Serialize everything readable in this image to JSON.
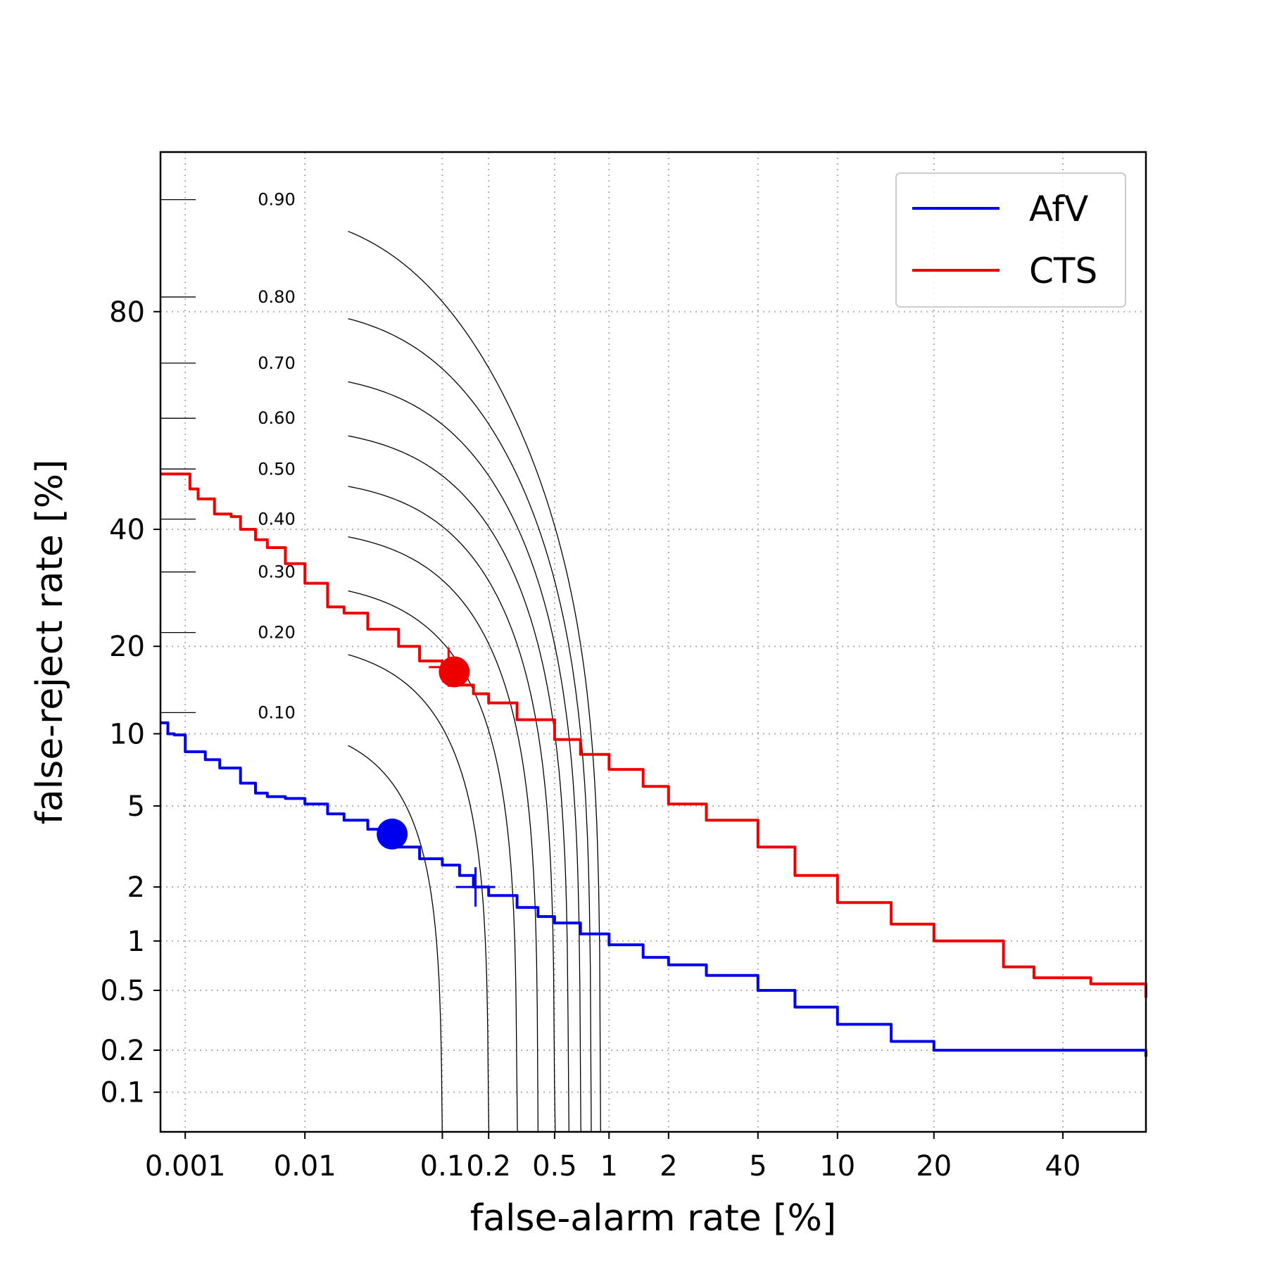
{
  "chart_data": {
    "type": "line",
    "title": "",
    "xlabel": "false-alarm rate [%]",
    "ylabel": "false-reject rate [%]",
    "x_scale": "probit",
    "y_scale": "probit",
    "xlim": [
      0.0006,
      55
    ],
    "ylim": [
      0.05,
      95
    ],
    "grid": true,
    "legend_position": "top-right",
    "x_ticks": [
      {
        "value": 0.001,
        "label": "0.001"
      },
      {
        "value": 0.01,
        "label": "0.01"
      },
      {
        "value": 0.1,
        "label": "0.1"
      },
      {
        "value": 0.2,
        "label": "0.2"
      },
      {
        "value": 0.5,
        "label": "0.5"
      },
      {
        "value": 1,
        "label": "1"
      },
      {
        "value": 2,
        "label": "2"
      },
      {
        "value": 5,
        "label": "5"
      },
      {
        "value": 10,
        "label": "10"
      },
      {
        "value": 20,
        "label": "20"
      },
      {
        "value": 40,
        "label": "40"
      }
    ],
    "y_ticks": [
      {
        "value": 0.1,
        "label": "0.1"
      },
      {
        "value": 0.2,
        "label": "0.2"
      },
      {
        "value": 0.5,
        "label": "0.5"
      },
      {
        "value": 1,
        "label": "1"
      },
      {
        "value": 2,
        "label": "2"
      },
      {
        "value": 5,
        "label": "5"
      },
      {
        "value": 10,
        "label": "10"
      },
      {
        "value": 20,
        "label": "20"
      },
      {
        "value": 40,
        "label": "40"
      },
      {
        "value": 80,
        "label": "80"
      }
    ],
    "series": [
      {
        "name": "AfV",
        "color": "#0000ee",
        "x": [
          0.0006,
          0.0007,
          0.0008,
          0.001,
          0.0015,
          0.002,
          0.003,
          0.004,
          0.005,
          0.007,
          0.01,
          0.015,
          0.02,
          0.03,
          0.04,
          0.05,
          0.07,
          0.1,
          0.13,
          0.16,
          0.2,
          0.3,
          0.4,
          0.5,
          0.7,
          1,
          1.5,
          2,
          3,
          5,
          7,
          10,
          15,
          20,
          30,
          40,
          55
        ],
        "y": [
          11,
          10,
          9.9,
          8.5,
          7.9,
          7.3,
          6.3,
          5.7,
          5.5,
          5.4,
          5.1,
          4.6,
          4.3,
          3.9,
          3.6,
          3.2,
          2.8,
          2.6,
          2.3,
          2.0,
          1.8,
          1.55,
          1.38,
          1.27,
          1.1,
          0.95,
          0.8,
          0.72,
          0.62,
          0.5,
          0.39,
          0.3,
          0.23,
          0.2,
          0.2,
          0.2,
          0.18
        ]
      },
      {
        "name": "CTS",
        "color": "#ee0000",
        "x": [
          0.0006,
          0.0009,
          0.0011,
          0.0013,
          0.0018,
          0.0025,
          0.003,
          0.004,
          0.005,
          0.007,
          0.01,
          0.015,
          0.02,
          0.03,
          0.05,
          0.07,
          0.1,
          0.13,
          0.16,
          0.2,
          0.3,
          0.5,
          0.7,
          1,
          1.5,
          2,
          3,
          5,
          7,
          10,
          15,
          20,
          30,
          35,
          45,
          55
        ],
        "y": [
          51,
          51,
          48,
          46,
          43,
          42.5,
          40,
          38,
          36.5,
          33.5,
          30,
          26,
          25,
          22.5,
          20,
          18,
          16,
          15,
          14,
          13,
          11.3,
          9.5,
          8.3,
          7.2,
          6.1,
          5.1,
          4.3,
          3.2,
          2.3,
          1.65,
          1.25,
          1.0,
          0.7,
          0.6,
          0.55,
          0.45
        ]
      }
    ],
    "markers": [
      {
        "series": "AfV",
        "shape": "dot",
        "x": 0.045,
        "y": 3.7
      },
      {
        "series": "AfV",
        "shape": "plus",
        "x": 0.165,
        "y": 2.0
      },
      {
        "series": "CTS",
        "shape": "dot",
        "x": 0.12,
        "y": 16.6
      },
      {
        "series": "CTS",
        "shape": "plus",
        "x": 0.11,
        "y": 17.2
      }
    ],
    "iso_cost_curves": [
      {
        "label": "0.10",
        "value": 0.1
      },
      {
        "label": "0.20",
        "value": 0.2
      },
      {
        "label": "0.30",
        "value": 0.3
      },
      {
        "label": "0.40",
        "value": 0.4
      },
      {
        "label": "0.50",
        "value": 0.5
      },
      {
        "label": "0.60",
        "value": 0.6
      },
      {
        "label": "0.70",
        "value": 0.7
      },
      {
        "label": "0.80",
        "value": 0.8
      },
      {
        "label": "0.90",
        "value": 0.9
      }
    ]
  }
}
